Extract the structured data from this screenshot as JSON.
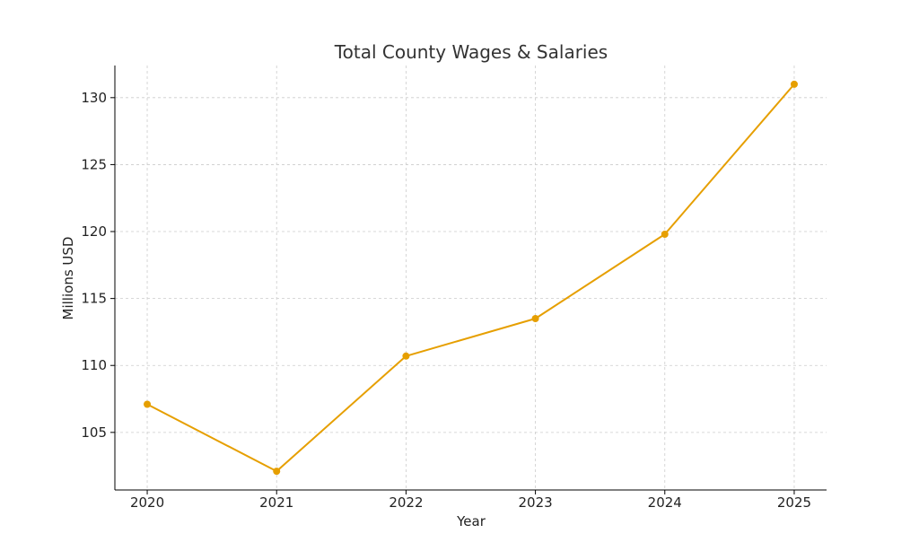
{
  "chart_data": {
    "type": "line",
    "title": "Total County Wages & Salaries",
    "xlabel": "Year",
    "ylabel": "Millions USD",
    "x": [
      2020,
      2021,
      2022,
      2023,
      2024,
      2025
    ],
    "series": [
      {
        "values": [
          107.1,
          102.1,
          110.7,
          113.5,
          119.8,
          131.0
        ]
      }
    ],
    "x_ticks": [
      "2020",
      "2021",
      "2022",
      "2023",
      "2024",
      "2025"
    ],
    "y_ticks": [
      105,
      110,
      115,
      120,
      125,
      130
    ],
    "xlim": [
      2019.75,
      2025.25
    ],
    "ylim": [
      100.7,
      132.4
    ],
    "grid": true,
    "markers": true,
    "line_color": "#E69F00"
  }
}
